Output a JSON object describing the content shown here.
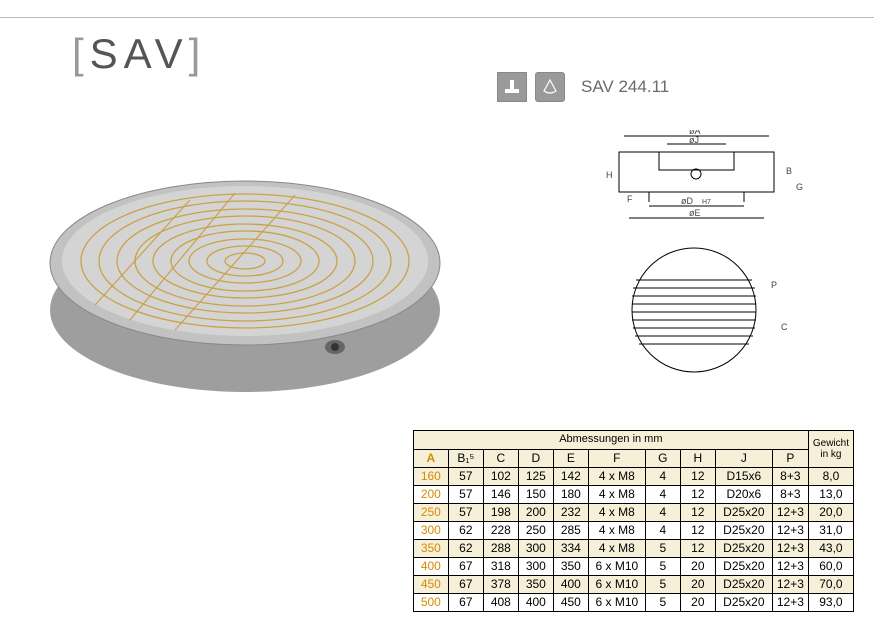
{
  "logo": {
    "left_bracket": "[",
    "text": "SAV",
    "right_bracket": "]"
  },
  "product_code": "SAV 244.11",
  "drawing_labels": {
    "oA": "øA",
    "oJ": "øJ",
    "oD": "øD",
    "H7": "H7",
    "oE": "øE",
    "B": "B",
    "G": "G",
    "F": "F",
    "H": "H",
    "P": "P",
    "C": "C"
  },
  "table": {
    "caption_left": "Abmessungen in mm",
    "caption_right": "Gewicht\nin kg",
    "columns": [
      "A",
      "B₁⁵",
      "C",
      "D",
      "E",
      "F",
      "G",
      "H",
      "J",
      "P"
    ],
    "rows": [
      [
        "160",
        "57",
        "102",
        "125",
        "142",
        "4 x M8",
        "4",
        "12",
        "D15x6",
        "8+3",
        "8,0"
      ],
      [
        "200",
        "57",
        "146",
        "150",
        "180",
        "4 x M8",
        "4",
        "12",
        "D20x6",
        "8+3",
        "13,0"
      ],
      [
        "250",
        "57",
        "198",
        "200",
        "232",
        "4 x M8",
        "4",
        "12",
        "D25x20",
        "12+3",
        "20,0"
      ],
      [
        "300",
        "62",
        "228",
        "250",
        "285",
        "4 x M8",
        "4",
        "12",
        "D25x20",
        "12+3",
        "31,0"
      ],
      [
        "350",
        "62",
        "288",
        "300",
        "334",
        "4 x M8",
        "5",
        "12",
        "D25x20",
        "12+3",
        "43,0"
      ],
      [
        "400",
        "67",
        "318",
        "300",
        "350",
        "6 x M10",
        "5",
        "20",
        "D25x20",
        "12+3",
        "60,0"
      ],
      [
        "450",
        "67",
        "378",
        "350",
        "400",
        "6 x M10",
        "5",
        "20",
        "D25x20",
        "12+3",
        "70,0"
      ],
      [
        "500",
        "67",
        "408",
        "400",
        "450",
        "6 x M10",
        "5",
        "20",
        "D25x20",
        "12+3",
        "93,0"
      ]
    ]
  },
  "colors": {
    "accent": "#d68a00",
    "band": "#f7f0d8",
    "border": "#000000",
    "chuck_steel": "#cfcfcf",
    "chuck_side": "#9e9e9e",
    "chuck_lines": "#c9a246"
  }
}
